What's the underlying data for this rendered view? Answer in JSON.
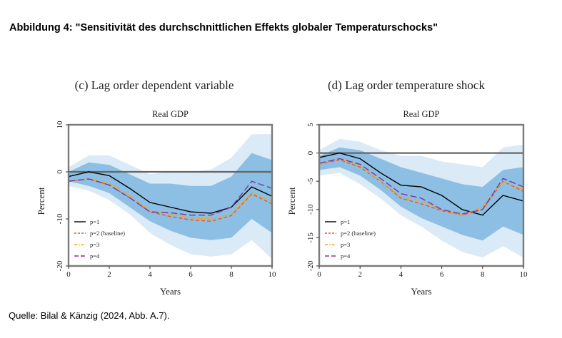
{
  "figure": {
    "heading": "Abbildung 4: \"Sensitivität des durchschnittlichen Effekts globaler Temperaturschocks\"",
    "source": "Quelle: Bilal & Känzig (2024, Abb. A.7)."
  },
  "chart_data": [
    {
      "type": "line",
      "panel_title": "(c) Lag order dependent variable",
      "title": "Real GDP",
      "xlabel": "Years",
      "ylabel": "Percent",
      "xlim": [
        0,
        10
      ],
      "ylim": [
        -20,
        10
      ],
      "x_ticks": [
        "0",
        "2",
        "4",
        "6",
        "8",
        "10"
      ],
      "y_ticks": [
        "10",
        "0",
        "-10",
        "-20"
      ],
      "x": [
        0,
        1,
        2,
        3,
        4,
        5,
        6,
        7,
        8,
        9,
        10
      ],
      "bands": {
        "outer_upper": [
          1.0,
          3.5,
          3.5,
          1.5,
          -0.5,
          0.0,
          0.0,
          0.5,
          3.0,
          8.0,
          8.0
        ],
        "outer_lower": [
          -3.0,
          -4.0,
          -6.0,
          -9.0,
          -13.0,
          -15.5,
          -17.5,
          -18.0,
          -17.5,
          -14.5,
          -18.5
        ],
        "inner_upper": [
          0.0,
          2.0,
          1.5,
          -0.5,
          -2.5,
          -2.5,
          -3.0,
          -3.0,
          -1.0,
          4.0,
          2.5
        ],
        "inner_lower": [
          -2.0,
          -3.0,
          -4.5,
          -7.5,
          -10.5,
          -12.5,
          -14.0,
          -14.5,
          -14.0,
          -10.0,
          -13.0
        ]
      },
      "series": [
        {
          "name": "p=1",
          "color": "#000000",
          "dash": "solid",
          "values": [
            -1.0,
            0.0,
            -0.8,
            -3.5,
            -6.5,
            -7.5,
            -8.5,
            -8.8,
            -7.5,
            -3.2,
            -5.2
          ]
        },
        {
          "name": "p=2 (baseline)",
          "color": "#e8572a",
          "dash": "dash",
          "values": [
            -2.0,
            -1.5,
            -2.8,
            -5.5,
            -8.5,
            -9.5,
            -10.2,
            -10.5,
            -9.3,
            -4.7,
            -6.8
          ]
        },
        {
          "name": "p=3",
          "color": "#f2a51c",
          "dash": "dashdot",
          "values": [
            -2.0,
            -1.5,
            -2.5,
            -5.0,
            -8.3,
            -9.0,
            -9.8,
            -10.0,
            -9.0,
            -4.5,
            -6.3
          ]
        },
        {
          "name": "p=4",
          "color": "#7b35a3",
          "dash": "longdash",
          "values": [
            -2.0,
            -1.5,
            -2.8,
            -5.5,
            -8.5,
            -8.7,
            -9.2,
            -9.2,
            -7.5,
            -2.0,
            -3.5
          ]
        }
      ]
    },
    {
      "type": "line",
      "panel_title": "(d) Lag order temperature shock",
      "title": "Real GDP",
      "xlabel": "Years",
      "ylabel": "Percent",
      "xlim": [
        0,
        10
      ],
      "ylim": [
        -20,
        5
      ],
      "x_ticks": [
        "0",
        "2",
        "4",
        "6",
        "8",
        "10"
      ],
      "y_ticks": [
        "5",
        "0",
        "-5",
        "-10",
        "-15",
        "-20"
      ],
      "x": [
        0,
        1,
        2,
        3,
        4,
        5,
        6,
        7,
        8,
        9,
        10
      ],
      "bands": {
        "outer_upper": [
          0.5,
          2.5,
          2.0,
          0.5,
          -0.5,
          -0.5,
          -1.5,
          -2.0,
          -2.5,
          1.0,
          1.5
        ],
        "outer_lower": [
          -4.0,
          -3.5,
          -5.5,
          -8.0,
          -11.0,
          -13.0,
          -15.5,
          -17.5,
          -18.5,
          -16.5,
          -18.5
        ],
        "inner_upper": [
          -0.5,
          1.0,
          0.5,
          -1.0,
          -2.5,
          -3.5,
          -4.5,
          -5.5,
          -6.0,
          -3.0,
          -2.5
        ],
        "inner_lower": [
          -3.0,
          -2.5,
          -4.0,
          -6.5,
          -9.5,
          -11.5,
          -13.0,
          -14.5,
          -15.5,
          -13.0,
          -14.5
        ]
      },
      "series": [
        {
          "name": "p=1",
          "color": "#000000",
          "dash": "solid",
          "values": [
            -0.8,
            0.0,
            -1.0,
            -3.5,
            -5.7,
            -6.0,
            -7.5,
            -10.0,
            -11.0,
            -7.5,
            -8.5
          ]
        },
        {
          "name": "p=2 (baseline)",
          "color": "#e8572a",
          "dash": "dash",
          "values": [
            -2.0,
            -1.2,
            -2.5,
            -5.0,
            -8.0,
            -9.0,
            -10.2,
            -11.0,
            -10.0,
            -5.0,
            -6.8
          ]
        },
        {
          "name": "p=3",
          "color": "#f2a51c",
          "dash": "dashdot",
          "values": [
            -2.0,
            -1.0,
            -2.3,
            -5.0,
            -7.8,
            -8.5,
            -10.0,
            -11.0,
            -9.5,
            -5.0,
            -6.5
          ]
        },
        {
          "name": "p=4",
          "color": "#7b35a3",
          "dash": "longdash",
          "values": [
            -1.8,
            -1.0,
            -2.0,
            -4.5,
            -7.2,
            -8.0,
            -10.0,
            -10.8,
            -10.0,
            -4.5,
            -6.0
          ]
        }
      ]
    }
  ]
}
